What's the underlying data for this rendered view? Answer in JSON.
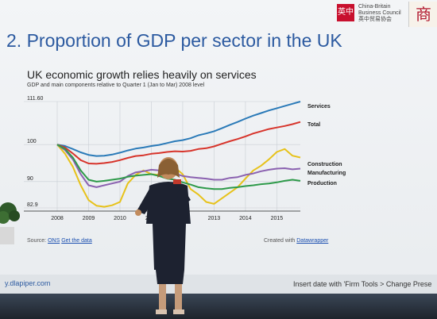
{
  "slide": {
    "title": "2. Proportion of GDP per sector in the UK",
    "logo_cn": "英中",
    "logo_line1": "China-Britain",
    "logo_line2": "Business Council",
    "logo_line3": "英中贸易协会",
    "logo2_cn": "商",
    "footer_url": "y.dlapiper.com",
    "footer_note": "Insert date with 'Firm Tools > Change Prese"
  },
  "chart": {
    "title": "UK economic growth relies heavily on services",
    "subtitle": "GDP and main components relative to Quarter 1 (Jan to Mar) 2008 level",
    "source_prefix": "Source:",
    "source_name": "ONS",
    "source_link": "Get the data",
    "credit_prefix": "Created with",
    "credit_name": "Datawrapper"
  },
  "chart_data": {
    "type": "line",
    "x": [
      2008.0,
      2008.25,
      2008.5,
      2008.75,
      2009.0,
      2009.25,
      2009.5,
      2009.75,
      2010.0,
      2010.25,
      2010.5,
      2010.75,
      2011.0,
      2011.25,
      2011.5,
      2011.75,
      2012.0,
      2012.25,
      2012.5,
      2012.75,
      2013.0,
      2013.25,
      2013.5,
      2013.75,
      2014.0,
      2014.25,
      2014.5,
      2014.75,
      2015.0,
      2015.25,
      2015.5,
      2015.75
    ],
    "x_ticks": [
      "2008",
      "2009",
      "2010",
      "2011",
      "2012",
      "2013",
      "2014",
      "2015"
    ],
    "x_tick_values": [
      2008,
      2009,
      2010,
      2011,
      2012,
      2013,
      2014,
      2015
    ],
    "y_ticks": [
      "82.9",
      "90",
      "100",
      "111.60"
    ],
    "y_tick_values": [
      82.9,
      90,
      100,
      111.6
    ],
    "ylim": [
      82.9,
      111.6
    ],
    "xlim": [
      2008,
      2015.75
    ],
    "series": [
      {
        "name": "Services",
        "color": "#2a7ab8",
        "values": [
          100,
          99.6,
          98.8,
          97.9,
          97.2,
          96.9,
          97.0,
          97.3,
          97.8,
          98.4,
          98.9,
          99.2,
          99.6,
          99.9,
          100.4,
          100.9,
          101.2,
          101.7,
          102.5,
          103.0,
          103.6,
          104.4,
          105.3,
          106.1,
          107.0,
          107.8,
          108.5,
          109.2,
          109.8,
          110.4,
          111.0,
          111.6
        ]
      },
      {
        "name": "Total",
        "color": "#d7342b",
        "values": [
          100,
          99.2,
          97.6,
          95.8,
          94.9,
          94.8,
          95.0,
          95.3,
          95.8,
          96.4,
          96.9,
          97.1,
          97.5,
          97.7,
          98.0,
          98.2,
          98.1,
          98.3,
          98.8,
          99.0,
          99.5,
          100.2,
          100.9,
          101.5,
          102.2,
          103.0,
          103.6,
          104.2,
          104.6,
          105.0,
          105.5,
          106.1
        ]
      },
      {
        "name": "Construction",
        "color": "#e7c21a",
        "values": [
          100,
          97.5,
          94.0,
          89.0,
          85.0,
          83.5,
          83.2,
          83.6,
          84.5,
          89.5,
          91.8,
          93.0,
          92.0,
          91.8,
          92.5,
          93.8,
          92.0,
          88.0,
          86.5,
          84.5,
          84.0,
          85.5,
          87.0,
          88.5,
          90.8,
          93.0,
          94.3,
          96.0,
          98.0,
          98.8,
          97.0,
          96.5
        ]
      },
      {
        "name": "Manufacturing",
        "color": "#8b62b0",
        "values": [
          100,
          98.5,
          96.0,
          92.0,
          89.0,
          88.5,
          89.0,
          89.5,
          90.0,
          91.5,
          92.5,
          92.8,
          93.2,
          93.0,
          92.5,
          92.2,
          91.5,
          91.2,
          91.0,
          90.8,
          90.5,
          90.5,
          91.0,
          91.2,
          91.8,
          92.2,
          92.8,
          93.2,
          93.5,
          93.6,
          93.3,
          93.5
        ]
      },
      {
        "name": "Production",
        "color": "#2e9a4a",
        "values": [
          100,
          98.8,
          96.5,
          93.0,
          90.5,
          90.0,
          90.2,
          90.5,
          90.8,
          91.3,
          91.6,
          91.8,
          92.0,
          91.5,
          90.8,
          90.5,
          89.8,
          89.2,
          88.5,
          88.2,
          88.0,
          88.0,
          88.3,
          88.5,
          88.8,
          89.0,
          89.3,
          89.5,
          89.8,
          90.2,
          90.5,
          90.2
        ]
      }
    ]
  }
}
